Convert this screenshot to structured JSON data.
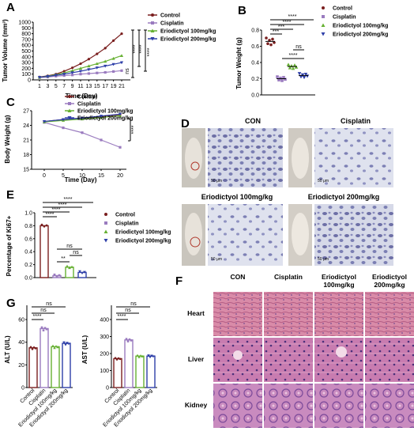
{
  "labels": {
    "A": "A",
    "B": "B",
    "C": "C",
    "D": "D",
    "E": "E",
    "F": "F",
    "G": "G"
  },
  "groups": [
    "Control",
    "Cisplatin",
    "Eriodictyol 100mg/kg",
    "Eriodictyol 200mg/kg"
  ],
  "colors": {
    "control": "#7a1f1f",
    "cisplatin": "#9a7bbf",
    "erio100": "#66b032",
    "erio200": "#2e3fa8"
  },
  "sig": {
    "s4": "****",
    "s3": "***",
    "s2": "**",
    "ns": "ns"
  },
  "panelA": {
    "xlabel": "Time (Day)",
    "ylabel": "Tumor Volume (mm³)",
    "xticks": [
      "1",
      "3",
      "5",
      "7",
      "9",
      "11",
      "13",
      "15",
      "17",
      "19",
      "21"
    ],
    "yticks": [
      "0",
      "100",
      "200",
      "300",
      "400",
      "500",
      "600",
      "700",
      "800",
      "900",
      "1000"
    ]
  },
  "panelB": {
    "ylabel": "Tumor Weight (g)",
    "yticks": [
      "0.0",
      "0.2",
      "0.4",
      "0.6",
      "0.8"
    ]
  },
  "panelC": {
    "xlabel": "Time (Day)",
    "ylabel": "Body Weight (g)",
    "xticks": [
      "0",
      "5",
      "10",
      "15",
      "20"
    ],
    "yticks": [
      "15",
      "18",
      "21",
      "24",
      "27"
    ]
  },
  "panelD": {
    "titles": [
      "CON",
      "Cisplatin",
      "Eriodictyol 100mg/kg",
      "Eriodictyol 200mg/kg"
    ],
    "scale": "50 μm"
  },
  "panelE": {
    "ylabel": "Percentage of Ki67+",
    "yticks": [
      "0.0",
      "0.2",
      "0.4",
      "0.6",
      "0.8",
      "1.0"
    ]
  },
  "panelF": {
    "cols": [
      "CON",
      "Cisplatin",
      "Eriodictyol\n100mg/kg",
      "Eriodictyol\n200mg/kg"
    ],
    "col_line1": [
      "CON",
      "Cisplatin",
      "Eriodictyol",
      "Eriodictyol"
    ],
    "col_line2": [
      "",
      "",
      "100mg/kg",
      "200mg/kg"
    ],
    "rows": [
      "Heart",
      "Liver",
      "Kidney"
    ]
  },
  "panelG": {
    "alt_ylabel": "ALT (U/L)",
    "ast_ylabel": "AST (U/L)",
    "alt_yticks": [
      "0",
      "20",
      "40",
      "60"
    ],
    "ast_yticks": [
      "0",
      "100",
      "200",
      "300",
      "400"
    ],
    "xticks": [
      "Control",
      "Cisplatin",
      "Eriodictyol 100mg/kg",
      "Eriodictyol 200mg/kg"
    ]
  },
  "chart_data": [
    {
      "panel": "A",
      "type": "line",
      "xlabel": "Time (Day)",
      "ylabel": "Tumor Volume (mm³)",
      "x": [
        1,
        3,
        5,
        7,
        9,
        11,
        13,
        15,
        17,
        19,
        21
      ],
      "ylim": [
        0,
        1000
      ],
      "series": [
        {
          "name": "Control",
          "values": [
            50,
            70,
            100,
            150,
            210,
            280,
            360,
            450,
            550,
            680,
            800
          ]
        },
        {
          "name": "Cisplatin",
          "values": [
            40,
            50,
            65,
            75,
            85,
            100,
            110,
            120,
            130,
            145,
            160
          ]
        },
        {
          "name": "Eriodictyol 100mg/kg",
          "values": [
            45,
            65,
            90,
            120,
            160,
            200,
            240,
            280,
            320,
            370,
            420
          ]
        },
        {
          "name": "Eriodictyol 200mg/kg",
          "values": [
            45,
            60,
            80,
            100,
            125,
            150,
            180,
            210,
            240,
            270,
            300
          ]
        }
      ]
    },
    {
      "panel": "B",
      "type": "scatter",
      "ylabel": "Tumor Weight (g)",
      "ylim": [
        0,
        0.8
      ],
      "categories": [
        "Control",
        "Cisplatin",
        "Eriodictyol 100mg/kg",
        "Eriodictyol 200mg/kg"
      ],
      "values": [
        0.66,
        0.2,
        0.35,
        0.24
      ]
    },
    {
      "panel": "C",
      "type": "line",
      "xlabel": "Time (Day)",
      "ylabel": "Body Weight (g)",
      "x": [
        0,
        5,
        10,
        15,
        20
      ],
      "ylim": [
        15,
        27
      ],
      "series": [
        {
          "name": "Control",
          "values": [
            24.8,
            25.2,
            25.5,
            25.8,
            26.2
          ]
        },
        {
          "name": "Cisplatin",
          "values": [
            24.6,
            23.5,
            22.5,
            21.0,
            19.5
          ]
        },
        {
          "name": "Eriodictyol 100mg/kg",
          "values": [
            24.7,
            25.0,
            25.3,
            25.6,
            26.0
          ]
        },
        {
          "name": "Eriodictyol 200mg/kg",
          "values": [
            24.8,
            25.2,
            25.5,
            25.9,
            26.3
          ]
        }
      ]
    },
    {
      "panel": "E",
      "type": "bar",
      "ylabel": "Percentage of Ki67+",
      "ylim": [
        0,
        1.0
      ],
      "categories": [
        "Control",
        "Cisplatin",
        "Eriodictyol 100mg/kg",
        "Eriodictyol 200mg/kg"
      ],
      "values": [
        0.8,
        0.03,
        0.16,
        0.08
      ]
    },
    {
      "panel": "G",
      "type": "bar",
      "ylabel": "ALT (U/L)",
      "ylim": [
        0,
        60
      ],
      "categories": [
        "Control",
        "Cisplatin",
        "Eriodictyol 100mg/kg",
        "Eriodictyol 200mg/kg"
      ],
      "values": [
        35,
        52,
        36,
        39
      ]
    },
    {
      "panel": "G",
      "type": "bar",
      "ylabel": "AST (U/L)",
      "ylim": [
        0,
        400
      ],
      "categories": [
        "Control",
        "Cisplatin",
        "Eriodictyol 100mg/kg",
        "Eriodictyol 200mg/kg"
      ],
      "values": [
        170,
        280,
        185,
        185
      ]
    }
  ]
}
